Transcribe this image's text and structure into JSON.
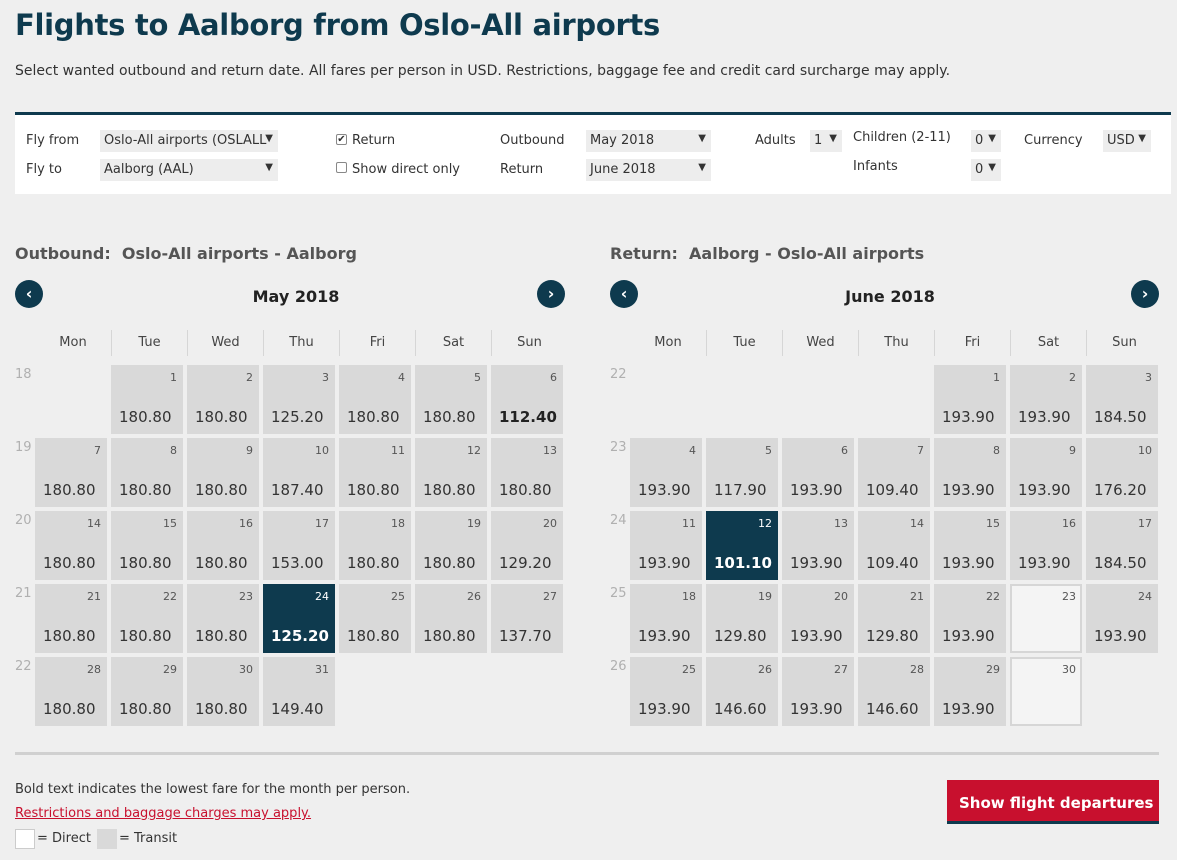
{
  "header": {
    "title": "Flights to Aalborg from Oslo-All airports",
    "subtitle": "Select wanted outbound and return date. All fares per person in USD. Restrictions, baggage fee and credit card surcharge may apply."
  },
  "search": {
    "fly_from_label": "Fly from",
    "fly_from_value": "Oslo-All airports (OSLALL",
    "fly_to_label": "Fly to",
    "fly_to_value": "Aalborg (AAL)",
    "return_label": "Return",
    "return_checked": true,
    "direct_label": "Show direct only",
    "direct_checked": false,
    "outbound_label": "Outbound",
    "outbound_value": "May 2018",
    "return_date_label": "Return",
    "return_value": "June 2018",
    "adults_label": "Adults",
    "adults_value": "1",
    "children_label": "Children (2-11)",
    "children_value": "0",
    "infants_label": "Infants",
    "infants_value": "0",
    "currency_label": "Currency",
    "currency_value": "USD"
  },
  "weekdays": [
    "Mon",
    "Tue",
    "Wed",
    "Thu",
    "Fri",
    "Sat",
    "Sun"
  ],
  "outbound": {
    "label": "Outbound:",
    "route": "Oslo-All airports - Aalborg",
    "month": "May 2018",
    "weeks": [
      "18",
      "19",
      "20",
      "21",
      "22"
    ],
    "days": [
      {
        "day": "1",
        "price": "180.80",
        "row": 0,
        "col": 1
      },
      {
        "day": "2",
        "price": "180.80",
        "row": 0,
        "col": 2
      },
      {
        "day": "3",
        "price": "125.20",
        "row": 0,
        "col": 3
      },
      {
        "day": "4",
        "price": "180.80",
        "row": 0,
        "col": 4
      },
      {
        "day": "5",
        "price": "180.80",
        "row": 0,
        "col": 5
      },
      {
        "day": "6",
        "price": "112.40",
        "row": 0,
        "col": 6,
        "bold": true
      },
      {
        "day": "7",
        "price": "180.80",
        "row": 1,
        "col": 0
      },
      {
        "day": "8",
        "price": "180.80",
        "row": 1,
        "col": 1
      },
      {
        "day": "9",
        "price": "180.80",
        "row": 1,
        "col": 2
      },
      {
        "day": "10",
        "price": "187.40",
        "row": 1,
        "col": 3
      },
      {
        "day": "11",
        "price": "180.80",
        "row": 1,
        "col": 4
      },
      {
        "day": "12",
        "price": "180.80",
        "row": 1,
        "col": 5
      },
      {
        "day": "13",
        "price": "180.80",
        "row": 1,
        "col": 6
      },
      {
        "day": "14",
        "price": "180.80",
        "row": 2,
        "col": 0
      },
      {
        "day": "15",
        "price": "180.80",
        "row": 2,
        "col": 1
      },
      {
        "day": "16",
        "price": "180.80",
        "row": 2,
        "col": 2
      },
      {
        "day": "17",
        "price": "153.00",
        "row": 2,
        "col": 3
      },
      {
        "day": "18",
        "price": "180.80",
        "row": 2,
        "col": 4
      },
      {
        "day": "19",
        "price": "180.80",
        "row": 2,
        "col": 5
      },
      {
        "day": "20",
        "price": "129.20",
        "row": 2,
        "col": 6
      },
      {
        "day": "21",
        "price": "180.80",
        "row": 3,
        "col": 0
      },
      {
        "day": "22",
        "price": "180.80",
        "row": 3,
        "col": 1
      },
      {
        "day": "23",
        "price": "180.80",
        "row": 3,
        "col": 2
      },
      {
        "day": "24",
        "price": "125.20",
        "row": 3,
        "col": 3,
        "selected": true
      },
      {
        "day": "25",
        "price": "180.80",
        "row": 3,
        "col": 4
      },
      {
        "day": "26",
        "price": "180.80",
        "row": 3,
        "col": 5
      },
      {
        "day": "27",
        "price": "137.70",
        "row": 3,
        "col": 6
      },
      {
        "day": "28",
        "price": "180.80",
        "row": 4,
        "col": 0
      },
      {
        "day": "29",
        "price": "180.80",
        "row": 4,
        "col": 1
      },
      {
        "day": "30",
        "price": "180.80",
        "row": 4,
        "col": 2
      },
      {
        "day": "31",
        "price": "149.40",
        "row": 4,
        "col": 3
      }
    ]
  },
  "return_cal": {
    "label": "Return:",
    "route": "Aalborg - Oslo-All airports",
    "month": "June 2018",
    "weeks": [
      "22",
      "23",
      "24",
      "25",
      "26"
    ],
    "days": [
      {
        "day": "1",
        "price": "193.90",
        "row": 0,
        "col": 4
      },
      {
        "day": "2",
        "price": "193.90",
        "row": 0,
        "col": 5
      },
      {
        "day": "3",
        "price": "184.50",
        "row": 0,
        "col": 6
      },
      {
        "day": "4",
        "price": "193.90",
        "row": 1,
        "col": 0
      },
      {
        "day": "5",
        "price": "117.90",
        "row": 1,
        "col": 1
      },
      {
        "day": "6",
        "price": "193.90",
        "row": 1,
        "col": 2
      },
      {
        "day": "7",
        "price": "109.40",
        "row": 1,
        "col": 3
      },
      {
        "day": "8",
        "price": "193.90",
        "row": 1,
        "col": 4
      },
      {
        "day": "9",
        "price": "193.90",
        "row": 1,
        "col": 5
      },
      {
        "day": "10",
        "price": "176.20",
        "row": 1,
        "col": 6
      },
      {
        "day": "11",
        "price": "193.90",
        "row": 2,
        "col": 0
      },
      {
        "day": "12",
        "price": "101.10",
        "row": 2,
        "col": 1,
        "selected": true
      },
      {
        "day": "13",
        "price": "193.90",
        "row": 2,
        "col": 2
      },
      {
        "day": "14",
        "price": "109.40",
        "row": 2,
        "col": 3
      },
      {
        "day": "15",
        "price": "193.90",
        "row": 2,
        "col": 4
      },
      {
        "day": "16",
        "price": "193.90",
        "row": 2,
        "col": 5
      },
      {
        "day": "17",
        "price": "184.50",
        "row": 2,
        "col": 6
      },
      {
        "day": "18",
        "price": "193.90",
        "row": 3,
        "col": 0
      },
      {
        "day": "19",
        "price": "129.80",
        "row": 3,
        "col": 1
      },
      {
        "day": "20",
        "price": "193.90",
        "row": 3,
        "col": 2
      },
      {
        "day": "21",
        "price": "129.80",
        "row": 3,
        "col": 3
      },
      {
        "day": "22",
        "price": "193.90",
        "row": 3,
        "col": 4
      },
      {
        "day": "23",
        "price": "",
        "row": 3,
        "col": 5,
        "direct": true
      },
      {
        "day": "24",
        "price": "193.90",
        "row": 3,
        "col": 6
      },
      {
        "day": "25",
        "price": "193.90",
        "row": 4,
        "col": 0
      },
      {
        "day": "26",
        "price": "146.60",
        "row": 4,
        "col": 1
      },
      {
        "day": "27",
        "price": "193.90",
        "row": 4,
        "col": 2
      },
      {
        "day": "28",
        "price": "146.60",
        "row": 4,
        "col": 3
      },
      {
        "day": "29",
        "price": "193.90",
        "row": 4,
        "col": 4
      },
      {
        "day": "30",
        "price": "",
        "row": 4,
        "col": 5,
        "direct": true
      }
    ]
  },
  "footer": {
    "bold_note": "Bold text indicates the lowest fare for the month per person.",
    "restrictions_link": "Restrictions and baggage charges may apply.",
    "legend_direct": "= Direct",
    "legend_transit": "= Transit",
    "cta_label": "Show flight departures"
  },
  "colors": {
    "brand_navy": "#0e3a4e",
    "brand_red": "#c8102e",
    "cell_gray": "#d9d9d9"
  }
}
